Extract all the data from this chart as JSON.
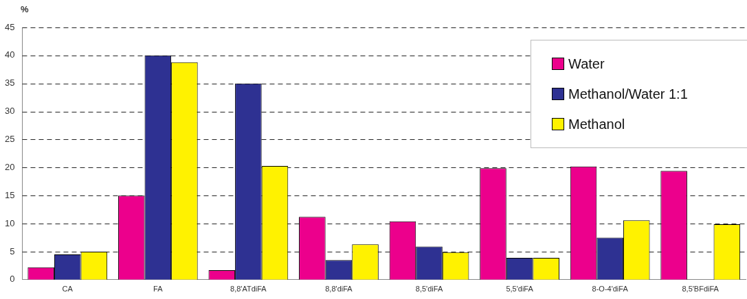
{
  "chart_data": {
    "type": "bar",
    "ylabel": "%",
    "categories": [
      "CA",
      "FA",
      "8,8'ATdiFA",
      "8,8'diFA",
      "8,5'diFA",
      "5,5'diFA",
      "8-O-4'diFA",
      "8,5'BFdiFA"
    ],
    "series": [
      {
        "name": "Water",
        "color": "#ec008c",
        "values": [
          2.2,
          15,
          1.7,
          11.2,
          10.4,
          19.9,
          20.2,
          19.4
        ]
      },
      {
        "name": "Methanol/Water 1:1",
        "color": "#2e3192",
        "values": [
          4.5,
          40,
          35,
          3.5,
          5.9,
          3.9,
          7.5,
          null
        ]
      },
      {
        "name": "Methanol",
        "color": "#fff200",
        "values": [
          5.0,
          38.8,
          20.3,
          6.3,
          4.9,
          3.9,
          10.6,
          9.9
        ]
      }
    ],
    "ylim": [
      0,
      45
    ],
    "yticks": [
      0,
      5,
      10,
      15,
      20,
      25,
      30,
      35,
      40,
      45
    ],
    "grid": "y",
    "legend": "top right"
  }
}
